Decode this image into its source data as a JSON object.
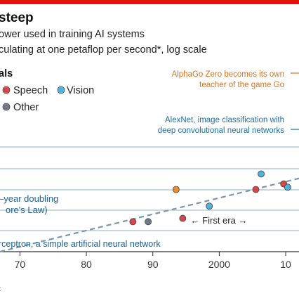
{
  "header": {
    "title": "steep",
    "subtitle": "ower used in training AI systems",
    "subtitle2": "culating at one petaflop per second*, log scale"
  },
  "legend": {
    "heading": "als",
    "items": [
      {
        "label": "Speech",
        "color": "#d8464a"
      },
      {
        "label": "Vision",
        "color": "#4fb3dc"
      },
      {
        "label": "Other",
        "color": "#6e7b86"
      }
    ]
  },
  "annotations": {
    "alphago": [
      "AlphaGo Zero becomes its own",
      "teacher of the game Go"
    ],
    "alexnet": [
      "AlexNet, image classification with",
      "deep convolutional neural networks"
    ],
    "doubling": [
      "–year doubling",
      "ore's Law)"
    ],
    "era": "← First era →",
    "perceptron": "rceptron, a simple artificial neural network"
  },
  "colors": {
    "accent_red": "#e3120b",
    "trend": "#7a95ad",
    "gridline": "#8fb0c8",
    "games_orange": "#f08c2a",
    "annotation_blue": "#1f6fa8",
    "annotation_orange": "#d9731e"
  },
  "footer": {
    "source_stub": "t"
  },
  "chart_data": {
    "type": "scatter",
    "x_ticks": [
      "70",
      "80",
      "90",
      "2000",
      "10"
    ],
    "x_tick_values": [
      1970,
      1980,
      1990,
      2000,
      2010
    ],
    "xlim": [
      1967,
      2012
    ],
    "ylim": [
      0,
      1
    ],
    "y_scale": "log",
    "grid": "horizontal",
    "series": [
      {
        "name": "Speech",
        "color": "#d8464a",
        "points": [
          [
            1987,
            0.27
          ],
          [
            1994.5,
            0.3
          ],
          [
            2005.5,
            0.56
          ],
          [
            2009.7,
            0.61
          ]
        ]
      },
      {
        "name": "Vision",
        "color": "#4fb3dc",
        "points": [
          [
            1998.5,
            0.41
          ],
          [
            2006.3,
            0.7
          ],
          [
            2010.3,
            0.58
          ]
        ]
      },
      {
        "name": "Other",
        "color": "#6e7b86",
        "points": [
          [
            1989.3,
            0.27
          ]
        ]
      },
      {
        "name": "",
        "color": "#f08c2a",
        "points": [
          [
            1993.5,
            0.56
          ]
        ]
      }
    ],
    "trend": [
      [
        1967,
        0.0
      ],
      [
        2012,
        0.66
      ]
    ]
  }
}
